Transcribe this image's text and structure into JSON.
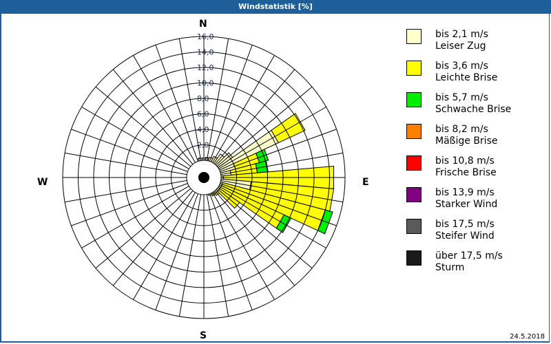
{
  "header": {
    "title": "Windstatistik [%]"
  },
  "footer": {
    "date": "24.5.2018"
  },
  "directions": {
    "n": "N",
    "e": "E",
    "s": "S",
    "w": "W"
  },
  "legend": [
    {
      "speed": "bis 2,1 m/s",
      "name": "Leiser Zug",
      "color": "#ffffcc"
    },
    {
      "speed": "bis 3,6 m/s",
      "name": "Leichte Brise",
      "color": "#ffff00"
    },
    {
      "speed": "bis 5,7 m/s",
      "name": "Schwache Brise",
      "color": "#00ee00"
    },
    {
      "speed": "bis 8,2 m/s",
      "name": "Mäßige Brise",
      "color": "#ff8000"
    },
    {
      "speed": "bis 10,8 m/s",
      "name": "Frische Brise",
      "color": "#ff0000"
    },
    {
      "speed": "bis 13,9 m/s",
      "name": "Starker Wind",
      "color": "#800080"
    },
    {
      "speed": "bis 17,5 m/s",
      "name": "Steifer Wind",
      "color": "#5a5a5a"
    },
    {
      "speed": "über 17,5 m/s",
      "name": "Sturm",
      "color": "#1a1a1a"
    }
  ],
  "chart_data": {
    "type": "wind-rose",
    "title": "Windstatistik [%]",
    "radial_ticks": [
      "0,0",
      "2,0",
      "4,0",
      "6,0",
      "8,0",
      "10,0",
      "12,0",
      "14,0",
      "16,0"
    ],
    "rmax": 16.0,
    "sector_width_deg": 10,
    "direction_labels": [
      "N",
      "E",
      "S",
      "W"
    ],
    "legend_position": "right",
    "categories": [
      "bis 2,1 m/s",
      "bis 3,6 m/s",
      "bis 5,7 m/s",
      "bis 8,2 m/s",
      "bis 10,8 m/s",
      "bis 13,9 m/s",
      "bis 17,5 m/s",
      "über 17,5 m/s"
    ],
    "sectors": [
      {
        "dir_deg": 10,
        "cumulative": [
          0.4,
          0.4,
          0.4
        ]
      },
      {
        "dir_deg": 20,
        "cumulative": [
          0.5,
          0.5,
          0.5
        ]
      },
      {
        "dir_deg": 30,
        "cumulative": [
          0.8,
          0.8,
          0.8
        ]
      },
      {
        "dir_deg": 40,
        "cumulative": [
          1.5,
          1.5,
          1.5
        ]
      },
      {
        "dir_deg": 50,
        "cumulative": [
          2.3,
          2.3,
          2.3
        ]
      },
      {
        "dir_deg": 60,
        "cumulative": [
          8.4,
          12.2,
          12.2
        ]
      },
      {
        "dir_deg": 70,
        "cumulative": [
          2.0,
          5.2,
          6.4
        ]
      },
      {
        "dir_deg": 80,
        "cumulative": [
          1.3,
          4.7,
          6.1
        ]
      },
      {
        "dir_deg": 90,
        "cumulative": [
          0.3,
          14.6,
          14.6
        ]
      },
      {
        "dir_deg": 100,
        "cumulative": [
          3.9,
          14.6,
          14.6
        ]
      },
      {
        "dir_deg": 110,
        "cumulative": [
          0.3,
          14.0,
          15.0
        ]
      },
      {
        "dir_deg": 120,
        "cumulative": [
          0.3,
          9.2,
          10.2
        ]
      },
      {
        "dir_deg": 130,
        "cumulative": [
          0.3,
          3.4,
          3.4
        ]
      },
      {
        "dir_deg": 140,
        "cumulative": [
          0.3,
          0.6,
          0.6
        ]
      },
      {
        "dir_deg": 150,
        "cumulative": [
          0.2,
          0.4,
          0.4
        ]
      },
      {
        "dir_deg": 160,
        "cumulative": [
          0.2,
          0.2,
          0.2
        ]
      },
      {
        "dir_deg": 350,
        "cumulative": [
          0.3,
          0.3,
          0.3
        ]
      },
      {
        "dir_deg": 0,
        "cumulative": [
          0.3,
          0.3,
          0.3
        ]
      }
    ]
  }
}
